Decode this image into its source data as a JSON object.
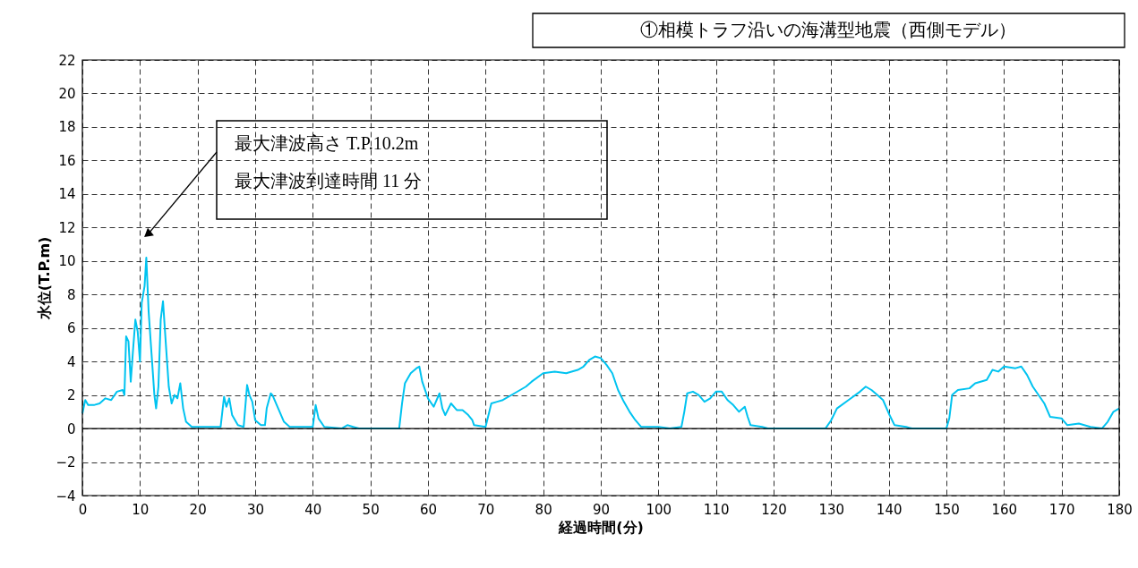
{
  "chart_data": {
    "type": "line",
    "title": "①相模トラフ沿いの海溝型地震（西側モデル）",
    "xlabel": "経過時間(分)",
    "ylabel": "水位(T.P.m)",
    "x": [
      0,
      0.5,
      1,
      2,
      3,
      4,
      5,
      6,
      7,
      7.3,
      7.6,
      8,
      8.4,
      8.8,
      9.2,
      9.6,
      10,
      10.3,
      10.8,
      11.1,
      11.5,
      12,
      12.5,
      12.8,
      13.2,
      13.6,
      14,
      14.5,
      15,
      15.5,
      16,
      16.5,
      17,
      17.5,
      18,
      19,
      24,
      24.6,
      25,
      25.5,
      26,
      27,
      28,
      28.6,
      29,
      29.5,
      30,
      31,
      31.7,
      32,
      32.7,
      33,
      34,
      35,
      36,
      40,
      40.5,
      41,
      42,
      45,
      46,
      47,
      48,
      55,
      55.5,
      56,
      57,
      58,
      58.5,
      59,
      60,
      61,
      62,
      62.5,
      63,
      64,
      65,
      66,
      67,
      67.7,
      68,
      70,
      71,
      72,
      73,
      75,
      77,
      78,
      80,
      82,
      84,
      86,
      87,
      88,
      89,
      90,
      91,
      92,
      93,
      94,
      95,
      96,
      97,
      100,
      102,
      104,
      104.5,
      105,
      106,
      107,
      108,
      109,
      110,
      111,
      112,
      113,
      114,
      115,
      115.5,
      116,
      118,
      119,
      129,
      130,
      131,
      133,
      135,
      136,
      137,
      138,
      139,
      140,
      141,
      143,
      144,
      150,
      150.5,
      151,
      152,
      154,
      155,
      157,
      158,
      159,
      160,
      162,
      163,
      164,
      165,
      167,
      168,
      170,
      171,
      173,
      175,
      177,
      178,
      179,
      180
    ],
    "series": [
      {
        "color": "#00c3f0",
        "values": [
          0.9,
          1.7,
          1.4,
          1.4,
          1.5,
          1.8,
          1.7,
          2.2,
          2.3,
          2.0,
          5.5,
          5.2,
          2.8,
          4.7,
          6.5,
          5.8,
          4.0,
          7.5,
          8.5,
          10.2,
          7.0,
          4.5,
          2.0,
          1.2,
          2.5,
          6.5,
          7.6,
          5.0,
          2.5,
          1.5,
          2.0,
          1.8,
          2.7,
          1.2,
          0.4,
          0.1,
          0.1,
          1.9,
          1.3,
          1.8,
          0.8,
          0.2,
          0.1,
          2.6,
          2.0,
          1.6,
          0.5,
          0.2,
          0.2,
          1.2,
          2.1,
          2.0,
          1.2,
          0.4,
          0.1,
          0.1,
          1.4,
          0.6,
          0.1,
          0.0,
          0.2,
          0.1,
          0.0,
          0.0,
          1.5,
          2.7,
          3.3,
          3.6,
          3.7,
          2.8,
          1.8,
          1.3,
          2.1,
          1.2,
          0.8,
          1.5,
          1.1,
          1.1,
          0.8,
          0.5,
          0.2,
          0.1,
          1.5,
          1.6,
          1.7,
          2.1,
          2.5,
          2.8,
          3.3,
          3.4,
          3.3,
          3.5,
          3.7,
          4.1,
          4.3,
          4.2,
          3.8,
          3.3,
          2.3,
          1.6,
          1.0,
          0.5,
          0.1,
          0.1,
          0.0,
          0.1,
          1.0,
          2.1,
          2.2,
          2.0,
          1.6,
          1.8,
          2.2,
          2.2,
          1.7,
          1.4,
          1.0,
          1.3,
          0.7,
          0.2,
          0.1,
          0.0,
          0.0,
          0.5,
          1.2,
          1.7,
          2.2,
          2.5,
          2.3,
          2.0,
          1.7,
          0.9,
          0.2,
          0.1,
          0.0,
          0.0,
          0.6,
          2.0,
          2.3,
          2.4,
          2.7,
          2.9,
          3.5,
          3.4,
          3.7,
          3.6,
          3.7,
          3.2,
          2.5,
          1.5,
          0.7,
          0.6,
          0.2,
          0.3,
          0.1,
          0.0,
          0.4,
          1.0,
          1.2
        ]
      }
    ],
    "xlim": [
      0,
      180
    ],
    "xticks": [
      0,
      10,
      20,
      30,
      40,
      50,
      60,
      70,
      80,
      90,
      100,
      110,
      120,
      130,
      140,
      150,
      160,
      170,
      180
    ],
    "ylim": [
      -4,
      22
    ],
    "yticks": [
      -4,
      -2,
      0,
      2,
      4,
      6,
      8,
      10,
      12,
      14,
      16,
      18,
      20,
      22
    ],
    "grid": true,
    "marker": "none",
    "line_style": "solid",
    "ref_lines": [
      {
        "axis": "y",
        "value": 0,
        "color": "#000000",
        "line_style": "solid"
      }
    ],
    "annotations": [
      "最大津波高さ T.P.10.2m\n最大津波到達時間 11 分"
    ]
  }
}
